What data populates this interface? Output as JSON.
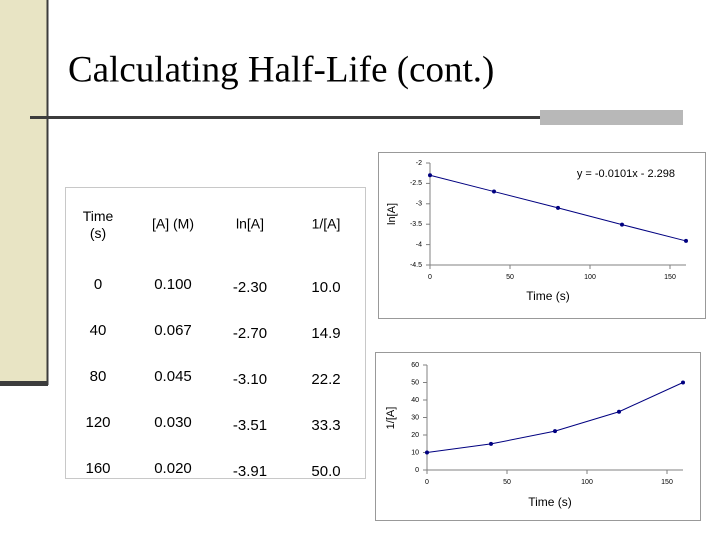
{
  "title": "Calculating Half-Life (cont.)",
  "table": {
    "header": [
      "Time (s)",
      "[A] (M)",
      "ln[A]",
      "1/[A]"
    ],
    "rows": [
      [
        "0",
        "0.100",
        "-2.30",
        "10.0"
      ],
      [
        "40",
        "0.067",
        "-2.70",
        "14.9"
      ],
      [
        "80",
        "0.045",
        "-3.10",
        "22.2"
      ],
      [
        "120",
        "0.030",
        "-3.51",
        "33.3"
      ],
      [
        "160",
        "0.020",
        "-3.91",
        "50.0"
      ]
    ]
  },
  "chart_data": [
    {
      "type": "line",
      "xlabel": "Time (s)",
      "ylabel": "ln[A]",
      "annotation": "y = -0.0101x - 2.298",
      "x": [
        0,
        40,
        80,
        120,
        160
      ],
      "series": [
        {
          "color": "#000080",
          "values": [
            -2.3,
            -2.7,
            -3.1,
            -3.51,
            -3.91
          ]
        }
      ],
      "xlim": [
        0,
        160
      ],
      "xticks": [
        0,
        50,
        100,
        150
      ],
      "ylim": [
        -4.5,
        -2
      ],
      "yticks": [
        -2,
        -2.5,
        -3,
        -3.5,
        -4,
        -4.5
      ]
    },
    {
      "type": "line",
      "xlabel": "Time (s)",
      "ylabel": "1/[A]",
      "x": [
        0,
        40,
        80,
        120,
        160
      ],
      "series": [
        {
          "color": "#000080",
          "values": [
            10.0,
            14.9,
            22.2,
            33.3,
            50.0
          ]
        }
      ],
      "xlim": [
        0,
        160
      ],
      "xticks": [
        0,
        50,
        100,
        150
      ],
      "ylim": [
        0,
        60
      ],
      "yticks": [
        0,
        10,
        20,
        30,
        40,
        50,
        60
      ]
    }
  ]
}
